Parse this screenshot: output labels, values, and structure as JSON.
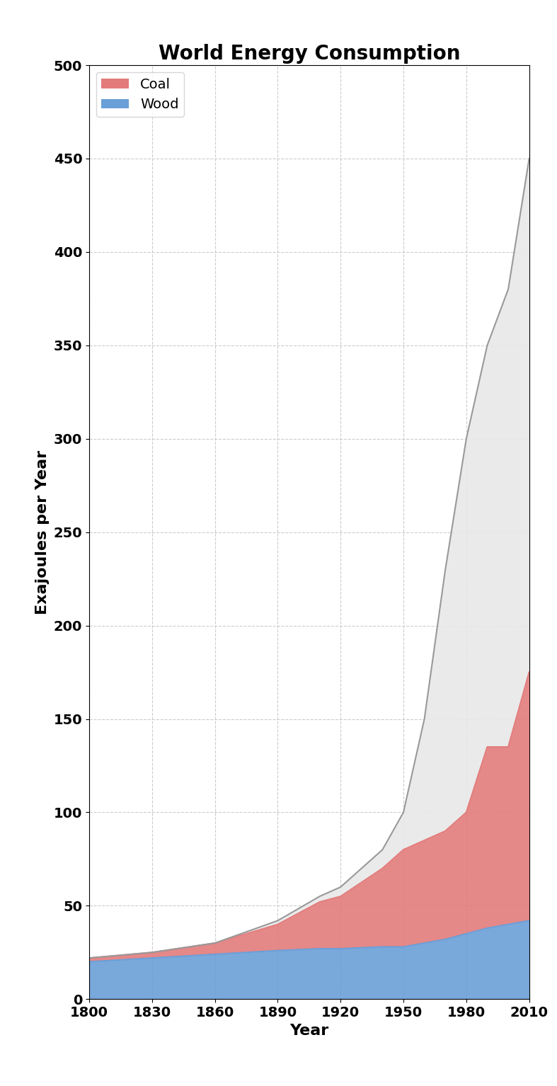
{
  "chart_data": {
    "type": "area",
    "stacked": true,
    "title": "World Energy Consumption",
    "x_label": "Year",
    "y_label": "Exajoules per Year",
    "x": [
      1800,
      1830,
      1860,
      1890,
      1910,
      1920,
      1940,
      1950,
      1960,
      1970,
      1980,
      1990,
      2000,
      2010
    ],
    "series": [
      {
        "name": "Wood",
        "color": "#6a9fd8",
        "values": [
          20,
          22,
          24,
          26,
          27,
          27,
          28,
          28,
          30,
          32,
          35,
          38,
          40,
          42
        ]
      },
      {
        "name": "Coal",
        "color": "#e37b7b",
        "values": [
          2,
          3,
          6,
          14,
          25,
          28,
          42,
          52,
          55,
          58,
          65,
          97,
          95,
          133
        ]
      },
      {
        "color": "#e8e8e8",
        "values": [
          0,
          0,
          0,
          2,
          3,
          5,
          10,
          20,
          65,
          140,
          200,
          215,
          245,
          275
        ]
      }
    ],
    "xlim": [
      1800,
      2010
    ],
    "xticks": [
      1800,
      1830,
      1860,
      1890,
      1920,
      1950,
      1980,
      2010
    ],
    "ylim": [
      0,
      500
    ],
    "yticks": [
      0,
      50,
      100,
      150,
      200,
      250,
      300,
      350,
      400,
      450,
      500
    ],
    "grid": true,
    "legend": "upper left"
  }
}
